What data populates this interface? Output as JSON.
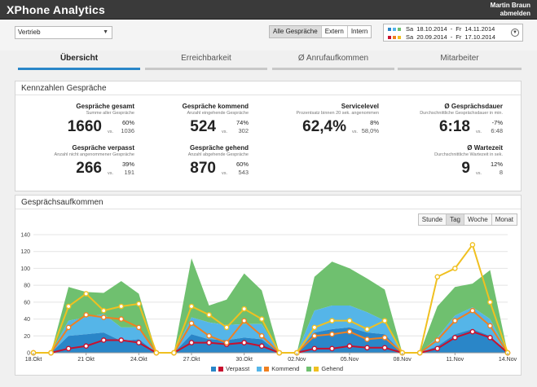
{
  "header": {
    "brand": "XPhone Analytics",
    "user_name": "Martin Braun",
    "logout": "abmelden"
  },
  "filters": {
    "department": "Vertrieb",
    "call_types": [
      "Alle Gespräche",
      "Extern",
      "Intern"
    ],
    "active_call_type": "Alle Gespräche",
    "range_primary": {
      "day": "Sa",
      "from": "18.10.2014",
      "sep": "-",
      "day2": "Fr",
      "to": "14.11.2014"
    },
    "range_compare": {
      "day": "Sa",
      "from": "20.09.2014",
      "sep": "-",
      "day2": "Fr",
      "to": "17.10.2014"
    },
    "primary_colors": [
      "#2a86c8",
      "#55b5e8",
      "#6fc06f"
    ],
    "compare_colors": [
      "#c8102e",
      "#f08020",
      "#f0c020"
    ]
  },
  "tabs": [
    "Übersicht",
    "Erreichbarkeit",
    "Ø Anrufaufkommen",
    "Mitarbeiter"
  ],
  "kpi_panel": {
    "title": "Kennzahlen Gespräche",
    "vs_label": "vs.",
    "items": [
      {
        "title": "Gespräche gesamt",
        "sub": "Summe aller Gespräche",
        "value": "1660",
        "pct": "60%",
        "compare": "1036"
      },
      {
        "title": "Gespräche kommend",
        "sub": "Anzahl eingehende Gespräche",
        "value": "524",
        "pct": "74%",
        "compare": "302"
      },
      {
        "title": "Servicelevel",
        "sub": "Prozentsatz binnen 20 sek. angenommen",
        "value": "62,4%",
        "pct": "8%",
        "compare": "58,0%"
      },
      {
        "title": "Ø Gesprächsdauer",
        "sub": "Durchschnittliche Gesprächsdauer in min.",
        "value": "6:18",
        "pct": "-7%",
        "compare": "6:48"
      },
      {
        "title": "Gespräche verpasst",
        "sub": "Anzahl nicht angenommener Gespräche",
        "value": "266",
        "pct": "39%",
        "compare": "191"
      },
      {
        "title": "Gespräche gehend",
        "sub": "Anzahl abgehende Gespräche",
        "value": "870",
        "pct": "60%",
        "compare": "543"
      },
      {
        "title": "Ø Wartezeit",
        "sub": "Durchschnittliche Wartezeit in sek.",
        "value": "9",
        "pct": "12%",
        "compare": "8"
      }
    ]
  },
  "chart_panel": {
    "title": "Gesprächsaufkommen",
    "range_buttons": [
      "Stunde",
      "Tag",
      "Woche",
      "Monat"
    ],
    "active_range": "Tag"
  },
  "chart_data": {
    "type": "area",
    "x_tick_labels": [
      "18.Okt",
      "21 Okt",
      "24.Okt",
      "27.Okt",
      "30.Okt",
      "02.Nov",
      "05.Nov",
      "08.Nov",
      "11.Nov",
      "14.Nov"
    ],
    "x_tick_index": [
      0,
      3,
      6,
      9,
      12,
      15,
      18,
      21,
      24,
      27
    ],
    "ylim": [
      0,
      140
    ],
    "y_ticks": [
      0,
      20,
      40,
      60,
      80,
      100,
      120,
      140
    ],
    "grid": true,
    "legend_position": "bottom",
    "categories": [
      "18.10",
      "19.10",
      "20.10",
      "21.10",
      "22.10",
      "23.10",
      "24.10",
      "25.10",
      "26.10",
      "27.10",
      "28.10",
      "29.10",
      "30.10",
      "31.10",
      "01.11",
      "02.11",
      "03.11",
      "04.11",
      "05.11",
      "06.11",
      "07.11",
      "08.11",
      "09.11",
      "10.11",
      "11.11",
      "12.11",
      "13.11",
      "14.11"
    ],
    "area_series": [
      {
        "name": "Verpasst",
        "color": "#2a86c8",
        "values": [
          0,
          0,
          20,
          22,
          24,
          14,
          16,
          0,
          0,
          22,
          16,
          15,
          18,
          16,
          0,
          0,
          24,
          28,
          30,
          24,
          22,
          0,
          0,
          8,
          22,
          28,
          20,
          0
        ]
      },
      {
        "name": "Kommend",
        "color": "#55b5e8",
        "values": [
          0,
          0,
          18,
          20,
          22,
          16,
          14,
          0,
          0,
          20,
          20,
          18,
          16,
          18,
          0,
          0,
          26,
          28,
          26,
          24,
          16,
          0,
          0,
          10,
          22,
          26,
          20,
          0
        ]
      },
      {
        "name": "Gehend",
        "color": "#6fc06f",
        "values": [
          0,
          0,
          40,
          30,
          25,
          55,
          40,
          0,
          0,
          70,
          20,
          30,
          60,
          40,
          0,
          0,
          40,
          52,
          44,
          40,
          37,
          0,
          0,
          37,
          34,
          28,
          58,
          0
        ]
      }
    ],
    "line_series": [
      {
        "color": "#c8102e",
        "values": [
          0,
          0,
          5,
          8,
          15,
          15,
          12,
          0,
          0,
          12,
          12,
          10,
          12,
          8,
          0,
          0,
          5,
          5,
          8,
          6,
          6,
          0,
          0,
          5,
          18,
          25,
          18,
          0
        ]
      },
      {
        "color": "#f08020",
        "values": [
          0,
          0,
          30,
          45,
          42,
          40,
          30,
          0,
          0,
          35,
          20,
          12,
          38,
          20,
          0,
          0,
          20,
          22,
          25,
          16,
          18,
          0,
          0,
          15,
          38,
          50,
          32,
          0
        ]
      },
      {
        "color": "#f0c020",
        "values": [
          0,
          0,
          55,
          70,
          50,
          55,
          58,
          0,
          0,
          55,
          45,
          30,
          52,
          40,
          0,
          0,
          30,
          38,
          38,
          28,
          38,
          0,
          0,
          90,
          100,
          128,
          60,
          0
        ]
      }
    ]
  }
}
